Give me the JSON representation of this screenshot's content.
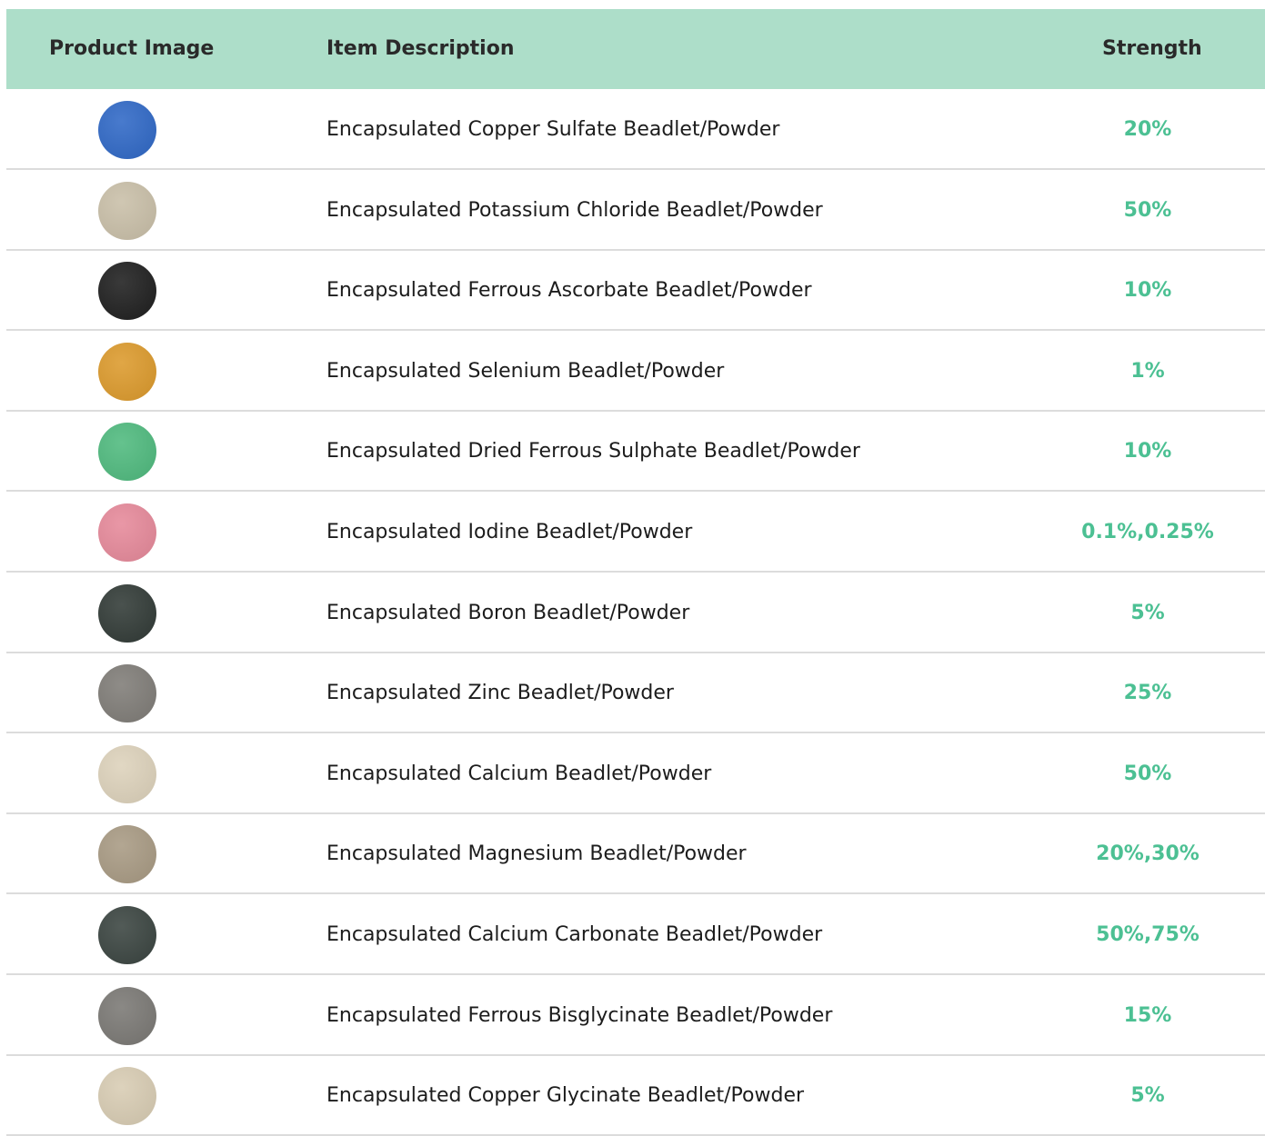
{
  "table": {
    "header": [
      "Product Image",
      "Item Description",
      "Strength"
    ],
    "rows": [
      {
        "image_color": "#2f68c6",
        "description": "Encapsulated Copper Sulfate Beadlet/Powder",
        "strength": "20%"
      },
      {
        "image_color": "#c9bfa8",
        "description": "Encapsulated Potassium Chloride Beadlet/Powder",
        "strength": "50%"
      },
      {
        "image_color": "#1e1e1e",
        "description": "Encapsulated Ferrous Ascorbate Beadlet/Powder",
        "strength": "10%"
      },
      {
        "image_color": "#dc9a2c",
        "description": "Encapsulated Selenium Beadlet/Powder",
        "strength": "1%"
      },
      {
        "image_color": "#4fba7e",
        "description": "Encapsulated Dried Ferrous Sulphate Beadlet/Powder",
        "strength": "10%"
      },
      {
        "image_color": "#e6899a",
        "description": "Encapsulated Iodine Beadlet/Powder",
        "strength": "0.1%,0.25%"
      },
      {
        "image_color": "#313a36",
        "description": "Encapsulated Boron Beadlet/Powder",
        "strength": "5%"
      },
      {
        "image_color": "#7f7c77",
        "description": "Encapsulated Zinc Beadlet/Powder",
        "strength": "25%"
      },
      {
        "image_color": "#ddd2bb",
        "description": "Encapsulated Calcium Beadlet/Powder",
        "strength": "50%"
      },
      {
        "image_color": "#a89a83",
        "description": "Encapsulated Magnesium Beadlet/Powder",
        "strength": "20%,30%"
      },
      {
        "image_color": "#3a4440",
        "description": "Encapsulated Calcium Carbonate Beadlet/Powder",
        "strength": "50%,75%"
      },
      {
        "image_color": "#7a7874",
        "description": "Encapsulated Ferrous Bisglycinate Beadlet/Powder",
        "strength": "15%"
      },
      {
        "image_color": "#d8ccb3",
        "description": "Encapsulated Copper Glycinate Beadlet/Powder",
        "strength": "5%"
      }
    ]
  }
}
